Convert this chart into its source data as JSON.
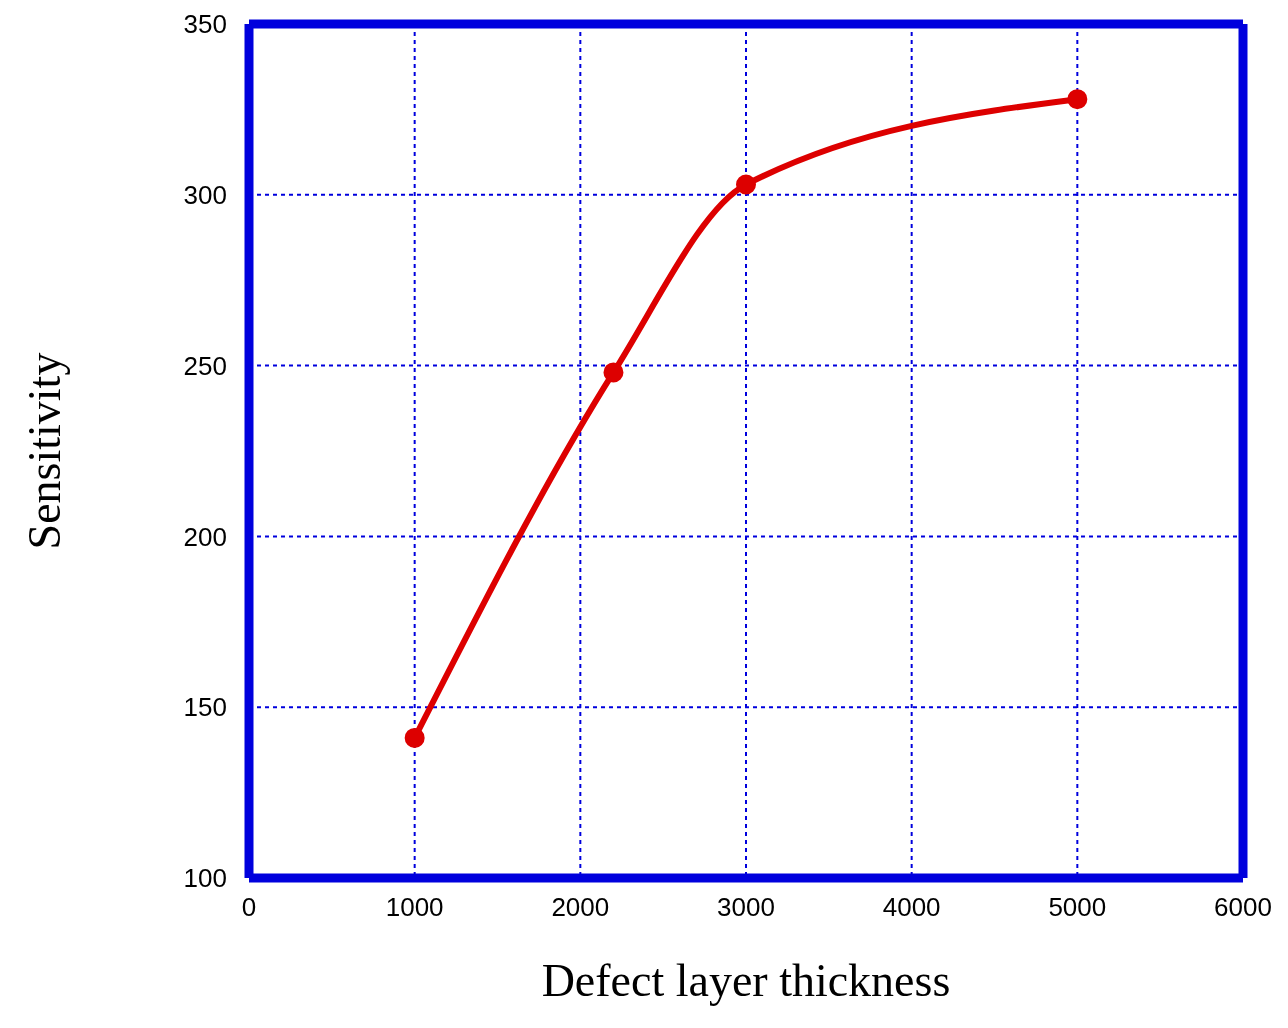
{
  "chart_data": {
    "type": "line",
    "xlabel": "Defect layer thickness",
    "ylabel": "Sensitivity",
    "x": [
      1000,
      2200,
      3000,
      5000
    ],
    "series": [
      {
        "color": "#dd0000",
        "values": [
          141,
          248,
          303,
          328
        ]
      }
    ],
    "xlim": [
      0,
      6000
    ],
    "xticks": [
      0,
      1000,
      2000,
      3000,
      4000,
      5000,
      6000
    ],
    "ylim": [
      100,
      350
    ],
    "yticks": [
      100,
      150,
      200,
      250,
      300,
      350
    ],
    "grid": true,
    "marker": "circle",
    "line_style": "solid"
  }
}
